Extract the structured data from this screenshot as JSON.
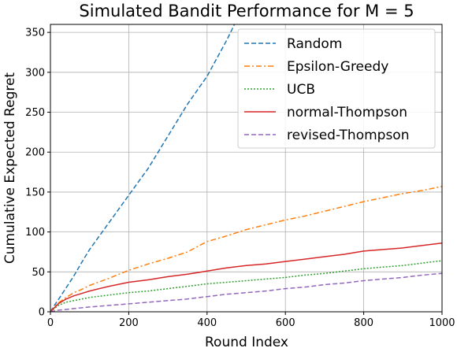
{
  "chart_data": {
    "type": "line",
    "title": "Simulated Bandit Performance for M = 5",
    "xlabel": "Round Index",
    "ylabel": "Cumulative Expected Regret",
    "xlim": [
      0,
      1000
    ],
    "ylim": [
      0,
      360
    ],
    "xticks": [
      0,
      200,
      400,
      600,
      800,
      1000
    ],
    "yticks": [
      0,
      50,
      100,
      150,
      200,
      250,
      300,
      350
    ],
    "grid": true,
    "legend_position": "top-right",
    "series": [
      {
        "name": "Random",
        "color": "#1f77b4",
        "style": "dashed",
        "x": [
          0,
          10,
          20,
          40,
          60,
          80,
          100,
          150,
          200,
          250,
          300,
          350,
          400,
          450,
          470
        ],
        "y": [
          0,
          8,
          15,
          30,
          45,
          62,
          78,
          112,
          146,
          180,
          220,
          260,
          295,
          340,
          360
        ]
      },
      {
        "name": "Epsilon-Greedy",
        "color": "#ff7f0e",
        "style": "dashdot",
        "x": [
          0,
          10,
          20,
          40,
          60,
          80,
          100,
          150,
          200,
          250,
          300,
          350,
          400,
          450,
          500,
          550,
          600,
          650,
          700,
          750,
          800,
          850,
          900,
          950,
          1000
        ],
        "y": [
          0,
          6,
          11,
          18,
          24,
          28,
          33,
          42,
          52,
          60,
          67,
          75,
          88,
          95,
          103,
          109,
          115,
          120,
          126,
          132,
          138,
          143,
          148,
          152,
          157
        ]
      },
      {
        "name": "UCB",
        "color": "#2ca02c",
        "style": "dotted",
        "x": [
          0,
          10,
          20,
          40,
          60,
          80,
          100,
          150,
          200,
          250,
          300,
          350,
          400,
          450,
          500,
          550,
          600,
          650,
          700,
          750,
          800,
          850,
          900,
          950,
          1000
        ],
        "y": [
          0,
          4,
          8,
          12,
          14,
          16,
          18,
          21,
          24,
          26,
          29,
          32,
          35,
          37,
          39,
          41,
          43,
          46,
          48,
          51,
          54,
          56,
          58,
          61,
          64
        ]
      },
      {
        "name": "normal-Thompson",
        "color": "#d62728",
        "style": "solid",
        "x": [
          0,
          10,
          20,
          40,
          60,
          80,
          100,
          150,
          200,
          250,
          300,
          350,
          400,
          450,
          500,
          550,
          600,
          650,
          700,
          750,
          800,
          850,
          900,
          950,
          1000
        ],
        "y": [
          0,
          5,
          10,
          16,
          20,
          23,
          26,
          32,
          37,
          40,
          44,
          47,
          51,
          55,
          58,
          60,
          63,
          66,
          69,
          72,
          76,
          78,
          80,
          83,
          86
        ]
      },
      {
        "name": "revised-Thompson",
        "color": "#9467bd",
        "style": "dashed",
        "x": [
          0,
          10,
          20,
          40,
          60,
          80,
          100,
          150,
          200,
          250,
          300,
          350,
          400,
          450,
          500,
          550,
          600,
          650,
          700,
          750,
          800,
          850,
          900,
          950,
          1000
        ],
        "y": [
          0,
          1,
          2,
          3,
          4,
          5,
          6,
          8,
          10,
          12,
          14,
          16,
          19,
          22,
          24,
          26,
          29,
          31,
          34,
          36,
          39,
          41,
          43,
          46,
          48
        ]
      }
    ]
  }
}
